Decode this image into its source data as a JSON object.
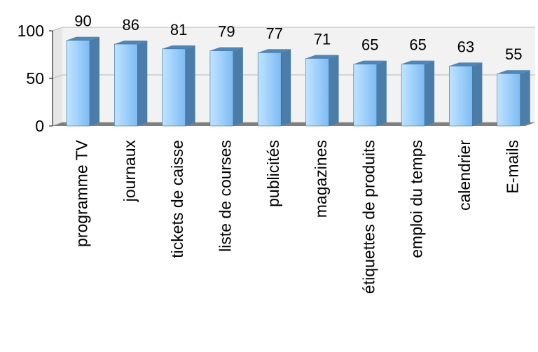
{
  "chart_data": {
    "type": "bar",
    "title": "",
    "xlabel": "",
    "ylabel": "",
    "ylim": [
      0,
      100
    ],
    "yticks": [
      0,
      50,
      100
    ],
    "grid": true,
    "three_d": true,
    "categories": [
      "programme TV",
      "journaux",
      "tickets de caisse",
      "liste de courses",
      "publicités",
      "magazines",
      "étiquettes de produits",
      "emploi du temps",
      "calendrier",
      "E-mails"
    ],
    "values": [
      90,
      86,
      81,
      79,
      77,
      71,
      65,
      65,
      63,
      55
    ],
    "colors": {
      "bar_front": "#99ccff",
      "bar_side": "#4a7ea8",
      "bar_top": "#4f86b8",
      "floor": "#7f7f7f",
      "wall": "#f2f2f2",
      "grid": "#b8b8b8"
    }
  }
}
